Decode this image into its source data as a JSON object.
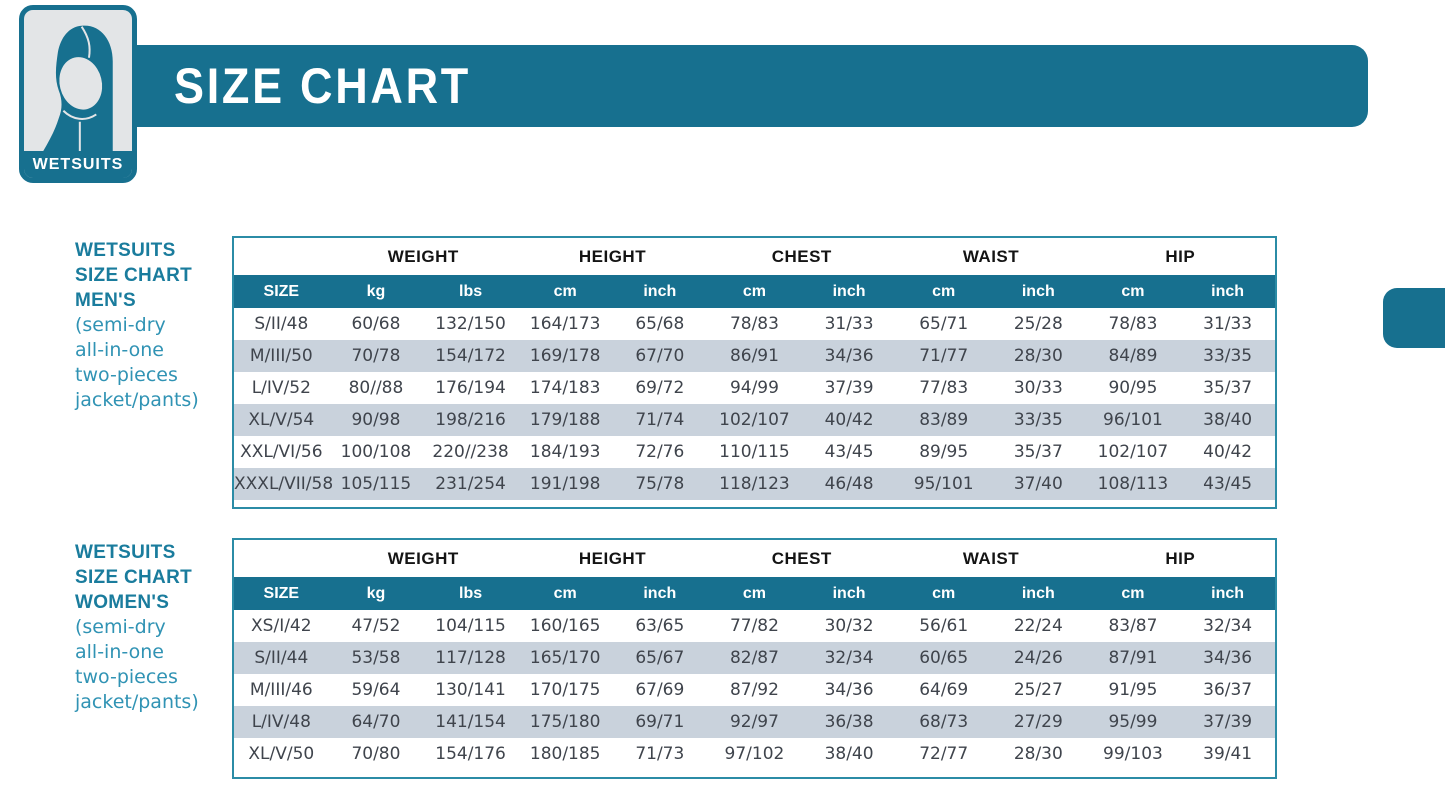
{
  "header": {
    "title": "SIZE CHART",
    "logo_label": "WETSUITS"
  },
  "colors": {
    "brand_teal": "#17708F",
    "stripe_row": "#C9D2DC",
    "sidebar_heading": "#1A7C9D",
    "sidebar_subtext": "#3093B4",
    "cell_text": "#3F444C"
  },
  "icons": {
    "logo_icon": "wetsuit-hood-icon"
  },
  "sections": [
    {
      "heading_lines": [
        "WETSUITS",
        "SIZE CHART",
        "MEN'S"
      ],
      "subheading_lines": [
        "(semi-dry",
        "all-in-one",
        "two-pieces",
        "jacket/pants)"
      ],
      "table": {
        "group_headers": [
          {
            "label": "",
            "span": 1
          },
          {
            "label": "WEIGHT",
            "span": 2
          },
          {
            "label": "HEIGHT",
            "span": 2
          },
          {
            "label": "CHEST",
            "span": 2
          },
          {
            "label": "WAIST",
            "span": 2
          },
          {
            "label": "HIP",
            "span": 2
          }
        ],
        "columns": [
          "SIZE",
          "kg",
          "lbs",
          "cm",
          "inch",
          "cm",
          "inch",
          "cm",
          "inch",
          "cm",
          "inch"
        ],
        "rows": [
          [
            "S/II/48",
            "60/68",
            "132/150",
            "164/173",
            "65/68",
            "78/83",
            "31/33",
            "65/71",
            "25/28",
            "78/83",
            "31/33"
          ],
          [
            "M/III/50",
            "70/78",
            "154/172",
            "169/178",
            "67/70",
            "86/91",
            "34/36",
            "71/77",
            "28/30",
            "84/89",
            "33/35"
          ],
          [
            "L/IV/52",
            "80//88",
            "176/194",
            "174/183",
            "69/72",
            "94/99",
            "37/39",
            "77/83",
            "30/33",
            "90/95",
            "35/37"
          ],
          [
            "XL/V/54",
            "90/98",
            "198/216",
            "179/188",
            "71/74",
            "102/107",
            "40/42",
            "83/89",
            "33/35",
            "96/101",
            "38/40"
          ],
          [
            "XXL/VI/56",
            "100/108",
            "220//238",
            "184/193",
            "72/76",
            "110/115",
            "43/45",
            "89/95",
            "35/37",
            "102/107",
            "40/42"
          ],
          [
            "XXXL/VII/58",
            "105/115",
            "231/254",
            "191/198",
            "75/78",
            "118/123",
            "46/48",
            "95/101",
            "37/40",
            "108/113",
            "43/45"
          ]
        ]
      }
    },
    {
      "heading_lines": [
        "WETSUITS",
        "SIZE CHART",
        "WOMEN'S"
      ],
      "subheading_lines": [
        "(semi-dry",
        "all-in-one",
        "two-pieces",
        "jacket/pants)"
      ],
      "table": {
        "group_headers": [
          {
            "label": "",
            "span": 1
          },
          {
            "label": "WEIGHT",
            "span": 2
          },
          {
            "label": "HEIGHT",
            "span": 2
          },
          {
            "label": "CHEST",
            "span": 2
          },
          {
            "label": "WAIST",
            "span": 2
          },
          {
            "label": "HIP",
            "span": 2
          }
        ],
        "columns": [
          "SIZE",
          "kg",
          "lbs",
          "cm",
          "inch",
          "cm",
          "inch",
          "cm",
          "inch",
          "cm",
          "inch"
        ],
        "rows": [
          [
            "XS/I/42",
            "47/52",
            "104/115",
            "160/165",
            "63/65",
            "77/82",
            "30/32",
            "56/61",
            "22/24",
            "83/87",
            "32/34"
          ],
          [
            "S/II/44",
            "53/58",
            "117/128",
            "165/170",
            "65/67",
            "82/87",
            "32/34",
            "60/65",
            "24/26",
            "87/91",
            "34/36"
          ],
          [
            "M/III/46",
            "59/64",
            "130/141",
            "170/175",
            "67/69",
            "87/92",
            "34/36",
            "64/69",
            "25/27",
            "91/95",
            "36/37"
          ],
          [
            "L/IV/48",
            "64/70",
            "141/154",
            "175/180",
            "69/71",
            "92/97",
            "36/38",
            "68/73",
            "27/29",
            "95/99",
            "37/39"
          ],
          [
            "XL/V/50",
            "70/80",
            "154/176",
            "180/185",
            "71/73",
            "97/102",
            "38/40",
            "72/77",
            "28/30",
            "99/103",
            "39/41"
          ]
        ]
      }
    }
  ]
}
